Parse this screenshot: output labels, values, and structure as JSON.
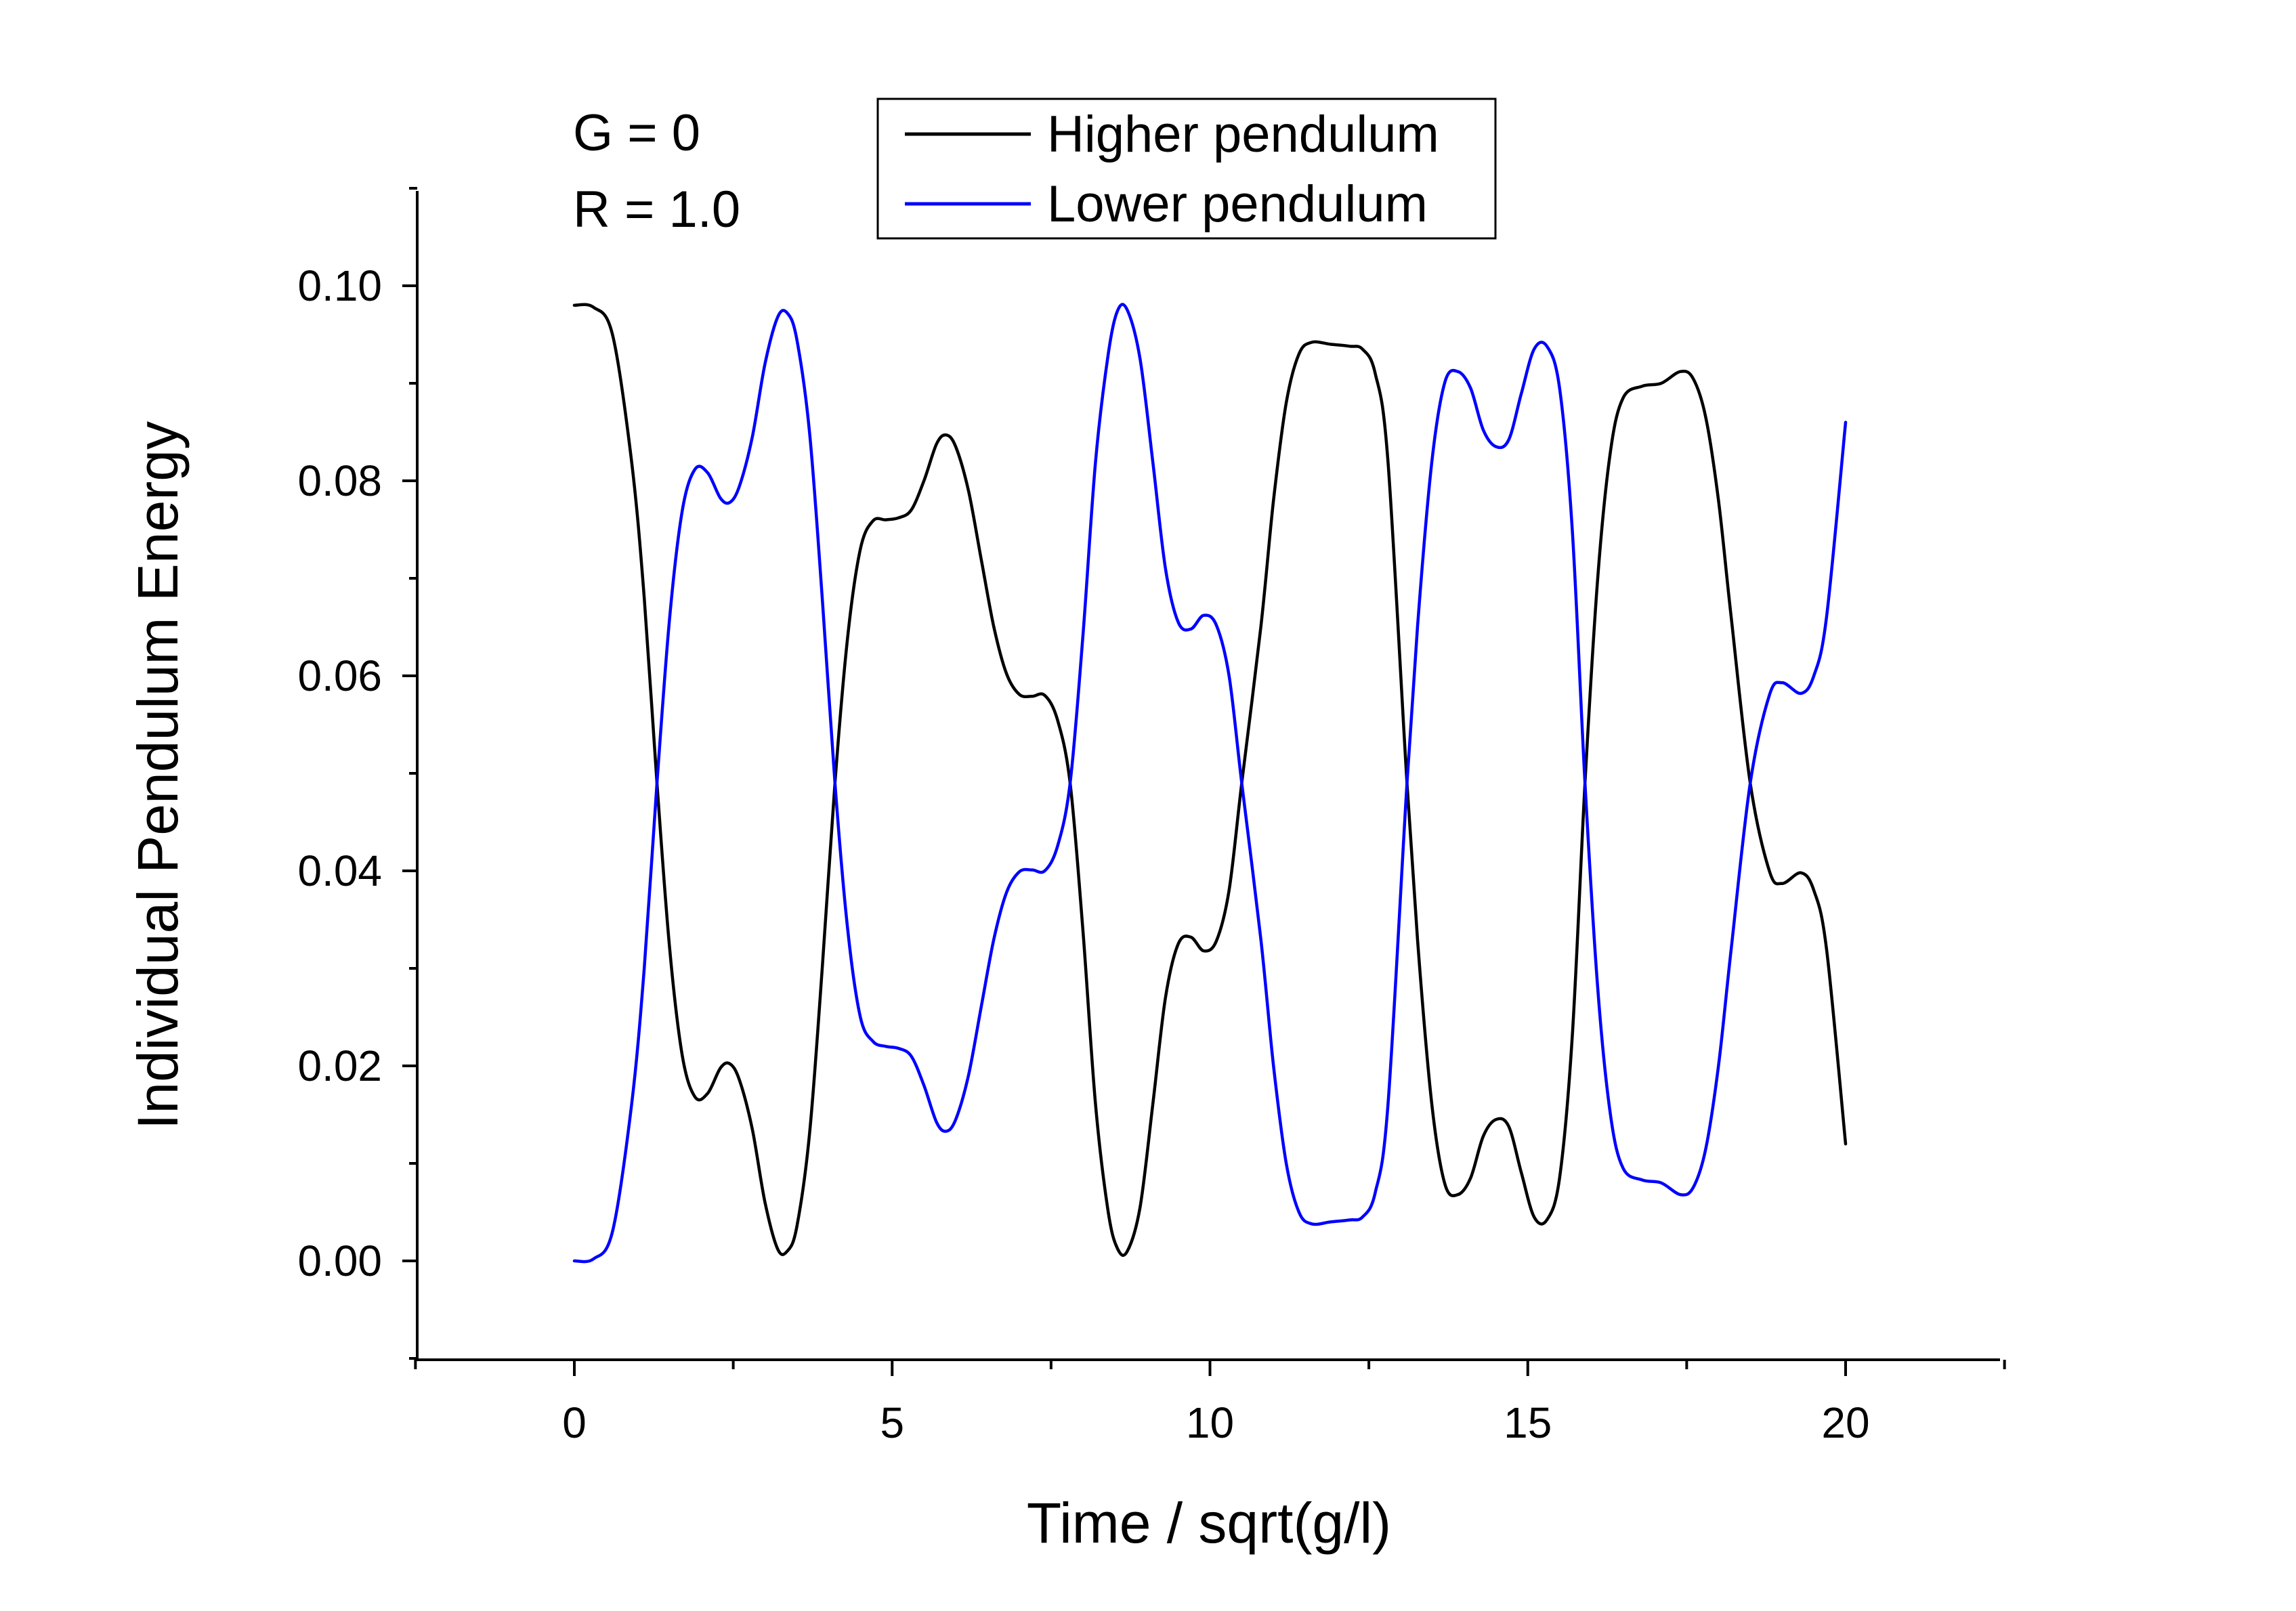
{
  "chart_data": {
    "type": "line",
    "title": "",
    "xlabel": "Time / sqrt(g/l)",
    "ylabel": "Individual Pendulum Energy",
    "xlim": [
      -2.5,
      22.5
    ],
    "ylim": [
      -0.01,
      0.11
    ],
    "x_ticks": [
      0,
      5,
      10,
      15,
      20
    ],
    "x_tick_labels": [
      "0",
      "5",
      "10",
      "15",
      "20"
    ],
    "y_ticks": [
      0.0,
      0.02,
      0.04,
      0.06,
      0.08,
      0.1
    ],
    "y_tick_labels": [
      "0.00",
      "0.02",
      "0.04",
      "0.06",
      "0.08",
      "0.10"
    ],
    "grid": false,
    "legend_position": "top-center",
    "annotations": [
      "G = 0",
      "R = 1.0"
    ],
    "series": [
      {
        "name": "Higher pendulum",
        "color": "#000000",
        "points": [
          [
            0.0,
            0.098
          ],
          [
            0.3,
            0.0978
          ],
          [
            0.6,
            0.095
          ],
          [
            0.9,
            0.082
          ],
          [
            1.1,
            0.068
          ],
          [
            1.3,
            0.049
          ],
          [
            1.5,
            0.032
          ],
          [
            1.7,
            0.021
          ],
          [
            1.9,
            0.0168
          ],
          [
            2.1,
            0.0172
          ],
          [
            2.3,
            0.0198
          ],
          [
            2.45,
            0.0202
          ],
          [
            2.6,
            0.0185
          ],
          [
            2.8,
            0.0135
          ],
          [
            3.0,
            0.006
          ],
          [
            3.2,
            0.0012
          ],
          [
            3.35,
            0.001
          ],
          [
            3.5,
            0.0035
          ],
          [
            3.7,
            0.013
          ],
          [
            3.9,
            0.03
          ],
          [
            4.1,
            0.049
          ],
          [
            4.3,
            0.064
          ],
          [
            4.5,
            0.073
          ],
          [
            4.7,
            0.0759
          ],
          [
            4.9,
            0.076
          ],
          [
            5.1,
            0.0762
          ],
          [
            5.3,
            0.077
          ],
          [
            5.5,
            0.08
          ],
          [
            5.7,
            0.0838
          ],
          [
            5.85,
            0.0847
          ],
          [
            6.0,
            0.0835
          ],
          [
            6.2,
            0.079
          ],
          [
            6.4,
            0.072
          ],
          [
            6.6,
            0.065
          ],
          [
            6.8,
            0.0602
          ],
          [
            7.0,
            0.0581
          ],
          [
            7.2,
            0.0579
          ],
          [
            7.4,
            0.058
          ],
          [
            7.6,
            0.0555
          ],
          [
            7.8,
            0.049
          ],
          [
            8.0,
            0.034
          ],
          [
            8.2,
            0.016
          ],
          [
            8.4,
            0.005
          ],
          [
            8.55,
            0.0012
          ],
          [
            8.7,
            0.001
          ],
          [
            8.9,
            0.0055
          ],
          [
            9.1,
            0.016
          ],
          [
            9.3,
            0.027
          ],
          [
            9.5,
            0.0325
          ],
          [
            9.7,
            0.0332
          ],
          [
            9.9,
            0.0318
          ],
          [
            10.1,
            0.0328
          ],
          [
            10.3,
            0.038
          ],
          [
            10.5,
            0.049
          ],
          [
            10.8,
            0.065
          ],
          [
            11.0,
            0.078
          ],
          [
            11.2,
            0.088
          ],
          [
            11.4,
            0.093
          ],
          [
            11.6,
            0.0942
          ],
          [
            11.9,
            0.094
          ],
          [
            12.2,
            0.0938
          ],
          [
            12.4,
            0.0935
          ],
          [
            12.6,
            0.091
          ],
          [
            12.8,
            0.082
          ],
          [
            13.1,
            0.049
          ],
          [
            13.3,
            0.03
          ],
          [
            13.5,
            0.0155
          ],
          [
            13.7,
            0.0078
          ],
          [
            13.9,
            0.0068
          ],
          [
            14.1,
            0.0085
          ],
          [
            14.3,
            0.0128
          ],
          [
            14.5,
            0.0145
          ],
          [
            14.7,
            0.0138
          ],
          [
            14.9,
            0.009
          ],
          [
            15.1,
            0.0045
          ],
          [
            15.3,
            0.0042
          ],
          [
            15.5,
            0.0085
          ],
          [
            15.7,
            0.023
          ],
          [
            15.9,
            0.049
          ],
          [
            16.1,
            0.07
          ],
          [
            16.3,
            0.083
          ],
          [
            16.5,
            0.0885
          ],
          [
            16.8,
            0.0897
          ],
          [
            17.1,
            0.09
          ],
          [
            17.4,
            0.0912
          ],
          [
            17.6,
            0.0905
          ],
          [
            17.8,
            0.0865
          ],
          [
            18.0,
            0.078
          ],
          [
            18.2,
            0.066
          ],
          [
            18.5,
            0.049
          ],
          [
            18.8,
            0.04
          ],
          [
            19.0,
            0.0387
          ],
          [
            19.3,
            0.0398
          ],
          [
            19.5,
            0.038
          ],
          [
            19.7,
            0.032
          ],
          [
            20.0,
            0.012
          ]
        ]
      },
      {
        "name": "Lower pendulum",
        "color": "#0000ff",
        "points": [
          [
            0.0,
            0.0
          ],
          [
            0.3,
            0.0002
          ],
          [
            0.6,
            0.003
          ],
          [
            0.9,
            0.016
          ],
          [
            1.1,
            0.03
          ],
          [
            1.3,
            0.049
          ],
          [
            1.5,
            0.066
          ],
          [
            1.7,
            0.077
          ],
          [
            1.9,
            0.0812
          ],
          [
            2.1,
            0.0808
          ],
          [
            2.3,
            0.0782
          ],
          [
            2.45,
            0.0778
          ],
          [
            2.6,
            0.0795
          ],
          [
            2.8,
            0.0845
          ],
          [
            3.0,
            0.092
          ],
          [
            3.2,
            0.0968
          ],
          [
            3.35,
            0.0972
          ],
          [
            3.5,
            0.0945
          ],
          [
            3.7,
            0.085
          ],
          [
            3.9,
            0.068
          ],
          [
            4.1,
            0.049
          ],
          [
            4.3,
            0.034
          ],
          [
            4.5,
            0.025
          ],
          [
            4.7,
            0.0225
          ],
          [
            4.9,
            0.022
          ],
          [
            5.1,
            0.0218
          ],
          [
            5.3,
            0.021
          ],
          [
            5.5,
            0.018
          ],
          [
            5.7,
            0.0142
          ],
          [
            5.85,
            0.0133
          ],
          [
            6.0,
            0.0145
          ],
          [
            6.2,
            0.019
          ],
          [
            6.4,
            0.026
          ],
          [
            6.6,
            0.033
          ],
          [
            6.8,
            0.0378
          ],
          [
            7.0,
            0.0399
          ],
          [
            7.2,
            0.0401
          ],
          [
            7.4,
            0.04
          ],
          [
            7.6,
            0.0425
          ],
          [
            7.8,
            0.049
          ],
          [
            8.0,
            0.064
          ],
          [
            8.2,
            0.082
          ],
          [
            8.4,
            0.093
          ],
          [
            8.55,
            0.0975
          ],
          [
            8.7,
            0.0975
          ],
          [
            8.9,
            0.0925
          ],
          [
            9.1,
            0.082
          ],
          [
            9.3,
            0.071
          ],
          [
            9.5,
            0.0655
          ],
          [
            9.7,
            0.0648
          ],
          [
            9.9,
            0.0662
          ],
          [
            10.1,
            0.0652
          ],
          [
            10.3,
            0.06
          ],
          [
            10.5,
            0.049
          ],
          [
            10.8,
            0.033
          ],
          [
            11.0,
            0.02
          ],
          [
            11.2,
            0.01
          ],
          [
            11.4,
            0.005
          ],
          [
            11.6,
            0.0038
          ],
          [
            11.9,
            0.004
          ],
          [
            12.2,
            0.0042
          ],
          [
            12.4,
            0.0045
          ],
          [
            12.6,
            0.007
          ],
          [
            12.8,
            0.016
          ],
          [
            13.1,
            0.049
          ],
          [
            13.3,
            0.068
          ],
          [
            13.5,
            0.0825
          ],
          [
            13.7,
            0.0902
          ],
          [
            13.9,
            0.0912
          ],
          [
            14.1,
            0.0895
          ],
          [
            14.3,
            0.0852
          ],
          [
            14.5,
            0.0835
          ],
          [
            14.7,
            0.0842
          ],
          [
            14.9,
            0.089
          ],
          [
            15.1,
            0.0935
          ],
          [
            15.3,
            0.0938
          ],
          [
            15.5,
            0.0895
          ],
          [
            15.7,
            0.075
          ],
          [
            15.9,
            0.049
          ],
          [
            16.1,
            0.028
          ],
          [
            16.3,
            0.015
          ],
          [
            16.5,
            0.0095
          ],
          [
            16.8,
            0.0083
          ],
          [
            17.1,
            0.008
          ],
          [
            17.4,
            0.0068
          ],
          [
            17.6,
            0.0075
          ],
          [
            17.8,
            0.0115
          ],
          [
            18.0,
            0.02
          ],
          [
            18.2,
            0.032
          ],
          [
            18.5,
            0.049
          ],
          [
            18.8,
            0.058
          ],
          [
            19.0,
            0.0593
          ],
          [
            19.3,
            0.0582
          ],
          [
            19.5,
            0.06
          ],
          [
            19.7,
            0.066
          ],
          [
            20.0,
            0.086
          ]
        ]
      }
    ]
  }
}
